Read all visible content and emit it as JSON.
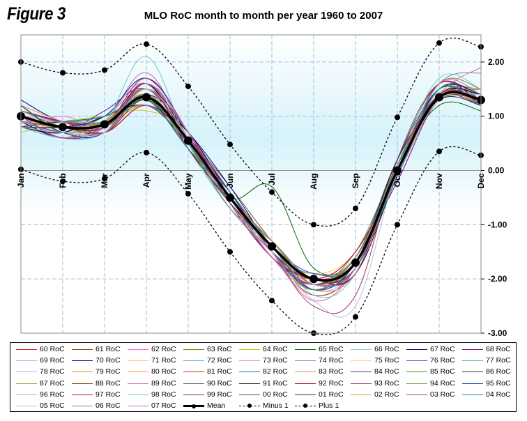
{
  "figure_label": "Figure 3",
  "chart_data": {
    "type": "line",
    "title": "MLO RoC month to month per year 1960 to 2007",
    "categories": [
      "Jan",
      "Feb",
      "Mar",
      "Apr",
      "May",
      "Jun",
      "Jul",
      "Aug",
      "Sep",
      "Oct",
      "Nov",
      "Dec"
    ],
    "ylim": [
      -3.0,
      2.5
    ],
    "yticks": [
      "2.00",
      "1.00",
      "0.00",
      "-1.00",
      "-2.00",
      "-3.00"
    ],
    "ytick_values": [
      2.0,
      1.0,
      0.0,
      -1.0,
      -2.0,
      -3.0
    ],
    "grid": true,
    "legend_position": "bottom",
    "series": [
      {
        "name": "60 RoC",
        "color": "#cc2222",
        "values": [
          0.9,
          0.6,
          0.9,
          1.3,
          0.4,
          -0.6,
          -1.5,
          -2.0,
          -1.8,
          0.1,
          1.4,
          1.2
        ]
      },
      {
        "name": "61 RoC",
        "color": "#8b4513",
        "values": [
          1.1,
          0.8,
          0.7,
          1.2,
          0.6,
          -0.3,
          -1.3,
          -2.1,
          -1.7,
          -0.1,
          1.3,
          1.4
        ]
      },
      {
        "name": "62 RoC",
        "color": "#ff66cc",
        "values": [
          0.8,
          1.0,
          0.8,
          1.5,
          0.5,
          -0.5,
          -1.4,
          -2.2,
          -1.6,
          0.0,
          1.5,
          1.3
        ]
      },
      {
        "name": "63 RoC",
        "color": "#808000",
        "values": [
          1.2,
          0.7,
          0.9,
          1.4,
          0.5,
          -0.4,
          -1.6,
          -1.9,
          -1.7,
          0.2,
          1.3,
          1.2
        ]
      },
      {
        "name": "64 RoC",
        "color": "#cccc00",
        "values": [
          0.7,
          0.9,
          1.0,
          1.1,
          0.7,
          -0.6,
          -1.5,
          -2.0,
          -1.5,
          -0.1,
          1.4,
          1.5
        ]
      },
      {
        "name": "65 RoC",
        "color": "#006400",
        "values": [
          1.0,
          0.6,
          0.8,
          1.3,
          0.6,
          -0.5,
          -0.3,
          -1.8,
          -1.6,
          0.1,
          1.2,
          1.1
        ]
      },
      {
        "name": "66 RoC",
        "color": "#7fd4d4",
        "values": [
          0.9,
          0.8,
          0.7,
          1.6,
          0.4,
          -0.7,
          -1.4,
          -2.1,
          -1.8,
          0.0,
          1.5,
          1.3
        ]
      },
      {
        "name": "67 RoC",
        "color": "#000080",
        "values": [
          1.3,
          0.9,
          0.9,
          1.2,
          0.5,
          -0.4,
          -1.5,
          -2.0,
          -1.7,
          0.1,
          1.4,
          1.4
        ]
      },
      {
        "name": "68 RoC",
        "color": "#800080",
        "values": [
          0.8,
          0.7,
          1.1,
          1.5,
          0.6,
          -0.6,
          -1.3,
          -2.2,
          -1.6,
          -0.2,
          1.3,
          1.2
        ]
      },
      {
        "name": "69 RoC",
        "color": "#c8a0e0",
        "values": [
          1.0,
          0.9,
          0.8,
          1.7,
          0.5,
          -0.5,
          -1.6,
          -2.3,
          -1.8,
          0.0,
          1.6,
          1.4
        ]
      },
      {
        "name": "70 RoC",
        "color": "#000080",
        "values": [
          0.9,
          0.6,
          0.7,
          1.4,
          0.7,
          -0.3,
          -1.4,
          -2.0,
          -1.7,
          0.1,
          1.4,
          1.3
        ]
      },
      {
        "name": "71 RoC",
        "color": "#ffcc66",
        "values": [
          1.1,
          0.8,
          0.9,
          1.3,
          0.5,
          -0.6,
          -1.5,
          -1.9,
          -1.5,
          0.0,
          1.3,
          1.5
        ]
      },
      {
        "name": "72 RoC",
        "color": "#66aadd",
        "values": [
          0.8,
          0.7,
          0.8,
          1.5,
          0.4,
          -0.5,
          -1.3,
          -2.1,
          -1.8,
          0.1,
          1.5,
          1.2
        ]
      },
      {
        "name": "73 RoC",
        "color": "#ff88aa",
        "values": [
          1.2,
          0.9,
          0.7,
          1.2,
          0.6,
          -0.4,
          -1.4,
          -2.0,
          -1.6,
          -0.1,
          1.4,
          1.3
        ]
      },
      {
        "name": "74 RoC",
        "color": "#aa77cc",
        "values": [
          0.9,
          0.8,
          1.0,
          1.6,
          0.5,
          -0.7,
          -1.5,
          -2.2,
          -1.7,
          0.0,
          1.6,
          1.4
        ]
      },
      {
        "name": "75 RoC",
        "color": "#ffcc99",
        "values": [
          1.0,
          0.7,
          0.8,
          1.4,
          0.6,
          -0.5,
          -1.6,
          -2.0,
          -1.9,
          0.2,
          1.3,
          1.3
        ]
      },
      {
        "name": "76 RoC",
        "color": "#3366cc",
        "values": [
          1.1,
          0.9,
          0.9,
          1.3,
          0.5,
          -0.6,
          -1.4,
          -2.1,
          -1.6,
          0.0,
          1.4,
          1.2
        ]
      },
      {
        "name": "77 RoC",
        "color": "#33bbbb",
        "values": [
          0.8,
          0.6,
          0.7,
          1.5,
          0.7,
          -0.4,
          -1.5,
          -1.9,
          -1.7,
          0.1,
          1.5,
          1.4
        ]
      },
      {
        "name": "78 RoC",
        "color": "#cc99ee",
        "values": [
          1.0,
          0.8,
          1.0,
          1.6,
          0.4,
          -0.5,
          -1.3,
          -2.2,
          -1.8,
          -0.1,
          1.3,
          1.3
        ]
      },
      {
        "name": "79 RoC",
        "color": "#dd8800",
        "values": [
          0.9,
          0.7,
          0.8,
          1.2,
          0.6,
          -0.6,
          -1.6,
          -2.0,
          -1.5,
          0.0,
          1.6,
          1.5
        ]
      },
      {
        "name": "80 RoC",
        "color": "#ff9933",
        "values": [
          1.2,
          0.9,
          0.7,
          1.4,
          0.5,
          -0.5,
          -1.4,
          -2.1,
          -1.7,
          0.1,
          1.4,
          1.2
        ]
      },
      {
        "name": "81 RoC",
        "color": "#cc3300",
        "values": [
          0.8,
          0.8,
          0.9,
          1.5,
          0.6,
          -0.4,
          -1.5,
          -2.3,
          -1.8,
          0.0,
          1.3,
          1.4
        ]
      },
      {
        "name": "82 RoC",
        "color": "#336699",
        "values": [
          1.0,
          0.6,
          0.8,
          1.3,
          0.5,
          -0.7,
          -1.3,
          -2.0,
          -1.6,
          0.2,
          1.5,
          1.3
        ]
      },
      {
        "name": "83 RoC",
        "color": "#cc9966",
        "values": [
          1.1,
          0.9,
          1.0,
          1.7,
          0.7,
          -0.5,
          -1.6,
          -2.2,
          -1.9,
          -0.1,
          1.4,
          1.2
        ]
      },
      {
        "name": "84 RoC",
        "color": "#3333cc",
        "values": [
          0.9,
          0.7,
          0.7,
          1.4,
          0.4,
          -0.6,
          -1.4,
          -1.9,
          -1.7,
          0.0,
          1.6,
          1.5
        ]
      },
      {
        "name": "85 RoC",
        "color": "#339933",
        "values": [
          1.0,
          0.8,
          0.9,
          1.2,
          0.6,
          -0.4,
          -1.5,
          -2.1,
          -1.5,
          0.1,
          1.3,
          1.3
        ]
      },
      {
        "name": "86 RoC",
        "color": "#333333",
        "values": [
          0.8,
          0.9,
          0.8,
          1.6,
          0.5,
          -0.5,
          -1.3,
          -2.0,
          -1.8,
          0.0,
          1.5,
          1.4
        ]
      },
      {
        "name": "87 RoC",
        "color": "#999933",
        "values": [
          1.2,
          0.7,
          1.0,
          1.5,
          0.7,
          -0.6,
          -1.6,
          -2.2,
          -1.6,
          -0.1,
          1.4,
          1.2
        ]
      },
      {
        "name": "88 RoC",
        "color": "#663300",
        "values": [
          0.9,
          0.8,
          0.7,
          1.3,
          0.4,
          -0.5,
          -1.4,
          -2.0,
          -1.7,
          0.2,
          1.6,
          1.3
        ]
      },
      {
        "name": "89 RoC",
        "color": "#cc66aa",
        "values": [
          1.0,
          0.6,
          0.9,
          1.8,
          0.6,
          -0.4,
          -1.5,
          -2.4,
          -1.8,
          0.0,
          1.3,
          1.5
        ]
      },
      {
        "name": "90 RoC",
        "color": "#555555",
        "values": [
          1.1,
          0.9,
          0.8,
          1.4,
          0.5,
          -0.7,
          -1.3,
          -2.1,
          -1.6,
          0.1,
          1.5,
          1.2
        ]
      },
      {
        "name": "91 RoC",
        "color": "#111111",
        "values": [
          0.8,
          0.7,
          1.0,
          1.2,
          0.7,
          -0.5,
          -1.6,
          -2.0,
          -1.9,
          -0.1,
          1.4,
          1.4
        ]
      },
      {
        "name": "92 RoC",
        "color": "#990000",
        "values": [
          1.0,
          0.8,
          0.8,
          1.6,
          0.4,
          -0.6,
          -1.4,
          -2.2,
          -1.7,
          0.0,
          1.3,
          1.3
        ]
      },
      {
        "name": "93 RoC",
        "color": "#993366",
        "values": [
          0.9,
          0.9,
          0.7,
          1.5,
          0.6,
          -0.4,
          -1.5,
          -2.5,
          -2.3,
          0.2,
          1.6,
          1.2
        ]
      },
      {
        "name": "94 RoC",
        "color": "#669933",
        "values": [
          1.2,
          0.7,
          0.9,
          1.3,
          0.5,
          -0.5,
          -1.3,
          -2.0,
          -1.6,
          0.0,
          1.4,
          1.5
        ]
      },
      {
        "name": "95 RoC",
        "color": "#003399",
        "values": [
          0.8,
          0.8,
          1.0,
          1.7,
          0.7,
          -0.6,
          -1.6,
          -2.1,
          -1.8,
          0.1,
          1.5,
          1.4
        ]
      },
      {
        "name": "96 RoC",
        "color": "#aaaaaa",
        "values": [
          1.0,
          0.6,
          0.8,
          1.4,
          0.4,
          -0.5,
          -1.4,
          -2.2,
          -1.7,
          -0.1,
          1.3,
          1.3
        ]
      },
      {
        "name": "97 RoC",
        "color": "#cc0066",
        "values": [
          1.1,
          0.9,
          0.7,
          1.2,
          0.6,
          -0.4,
          -1.5,
          -2.0,
          -1.5,
          0.0,
          1.6,
          1.2
        ]
      },
      {
        "name": "98 RoC",
        "color": "#66cccc",
        "values": [
          0.9,
          0.7,
          0.9,
          2.1,
          0.5,
          -0.7,
          -1.3,
          -2.3,
          -1.9,
          0.1,
          1.7,
          1.5
        ]
      },
      {
        "name": "99 RoC",
        "color": "#882222",
        "values": [
          1.0,
          0.8,
          0.8,
          1.5,
          0.7,
          -0.5,
          -1.6,
          -2.1,
          -1.6,
          0.0,
          1.4,
          1.3
        ]
      },
      {
        "name": "00 RoC",
        "color": "#336633",
        "values": [
          0.8,
          0.9,
          1.0,
          1.3,
          0.4,
          -0.6,
          -1.4,
          -2.0,
          -1.8,
          -0.1,
          1.5,
          1.4
        ]
      },
      {
        "name": "01 RoC",
        "color": "#223366",
        "values": [
          1.2,
          0.7,
          0.7,
          1.6,
          0.6,
          -0.4,
          -1.5,
          -2.2,
          -1.7,
          0.2,
          1.3,
          1.2
        ]
      },
      {
        "name": "02 RoC",
        "color": "#cc9933",
        "values": [
          0.9,
          0.8,
          0.9,
          1.4,
          0.5,
          -0.5,
          -1.3,
          -2.1,
          -1.6,
          0.0,
          1.6,
          1.5
        ]
      },
      {
        "name": "03 RoC",
        "color": "#aa3388",
        "values": [
          1.0,
          0.6,
          0.8,
          1.7,
          0.7,
          -0.6,
          -1.6,
          -2.0,
          -1.9,
          0.1,
          1.4,
          1.3
        ]
      },
      {
        "name": "04 RoC",
        "color": "#2288aa",
        "values": [
          1.1,
          0.9,
          1.0,
          1.3,
          0.4,
          -0.4,
          -1.4,
          -2.2,
          -1.7,
          -0.1,
          1.5,
          1.2
        ]
      },
      {
        "name": "05 RoC",
        "color": "#bbbbdd",
        "values": [
          0.8,
          0.7,
          0.7,
          1.5,
          0.6,
          -0.5,
          -1.5,
          -2.4,
          -2.5,
          0.0,
          1.3,
          1.4
        ]
      },
      {
        "name": "06 RoC",
        "color": "#888888",
        "values": [
          1.0,
          0.8,
          0.9,
          1.2,
          0.5,
          -0.7,
          -1.3,
          -2.0,
          -1.6,
          0.1,
          1.6,
          1.8
        ]
      },
      {
        "name": "07 RoC",
        "color": "#cc66cc",
        "values": [
          0.9,
          0.9,
          0.8,
          1.6,
          0.7,
          -0.5,
          -1.6,
          -2.1,
          -1.8,
          0.0,
          1.4,
          1.9
        ]
      },
      {
        "name": "Mean",
        "color": "#000000",
        "role": "mean",
        "values": [
          1.0,
          0.8,
          0.85,
          1.35,
          0.55,
          -0.5,
          -1.4,
          -2.0,
          -1.7,
          0.0,
          1.35,
          1.3
        ]
      },
      {
        "name": "Minus 1",
        "color": "#000000",
        "role": "band",
        "values": [
          0.02,
          -0.2,
          -0.15,
          0.33,
          -0.43,
          -1.5,
          -2.4,
          -3.0,
          -2.7,
          -1.0,
          0.35,
          0.28
        ]
      },
      {
        "name": "Plus 1",
        "color": "#000000",
        "role": "band",
        "values": [
          2.0,
          1.8,
          1.85,
          2.33,
          1.55,
          0.48,
          -0.4,
          -1.0,
          -0.7,
          0.98,
          2.35,
          2.28
        ]
      }
    ]
  }
}
